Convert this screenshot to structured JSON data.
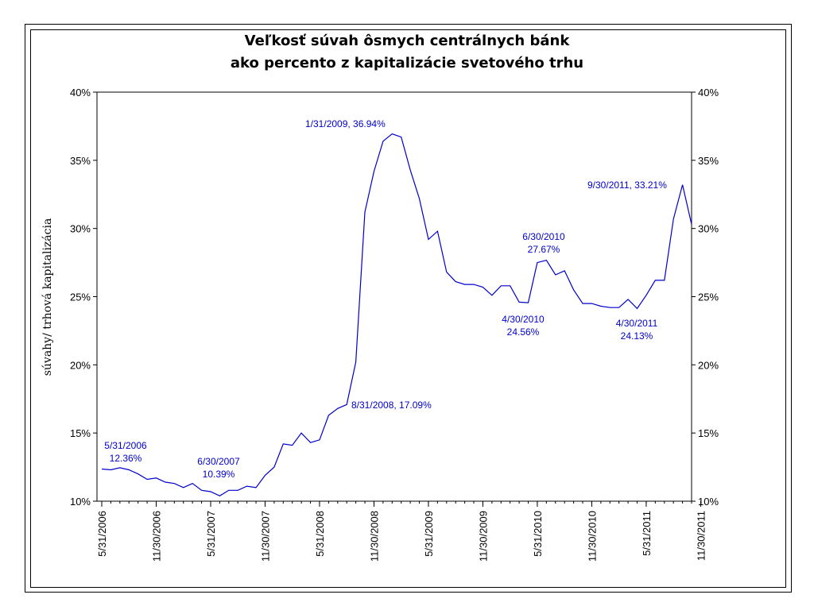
{
  "chart_data": {
    "type": "line",
    "title": [
      "Veľkosť súvah ôsmych centrálnych bánk",
      "ako percento z kapitalizácie svetového trhu"
    ],
    "ylabel": "súvahy/ trhová kapitalizácia",
    "ylim": [
      10,
      40
    ],
    "yticks": [
      "10%",
      "15%",
      "20%",
      "25%",
      "30%",
      "35%",
      "40%"
    ],
    "ytick_values": [
      10,
      15,
      20,
      25,
      30,
      35,
      40
    ],
    "xticks": [
      "5/31/2006",
      "11/30/2006",
      "5/31/2007",
      "11/30/2007",
      "5/31/2008",
      "11/30/2008",
      "5/31/2009",
      "11/30/2009",
      "5/31/2010",
      "11/30/2010",
      "5/31/2011",
      "11/30/2011"
    ],
    "grid": false,
    "secondary_y_axis": true,
    "color": "#0000cc",
    "series": [
      {
        "values": [
          12.36,
          12.3,
          12.45,
          12.3,
          12.0,
          11.6,
          11.7,
          11.4,
          11.3,
          11.0,
          11.3,
          10.8,
          10.7,
          10.39,
          10.8,
          10.8,
          11.1,
          11.0,
          11.9,
          12.5,
          14.2,
          14.1,
          15.0,
          14.3,
          14.5,
          16.3,
          16.8,
          17.09,
          20.2,
          31.2,
          34.2,
          36.4,
          36.94,
          36.7,
          34.3,
          32.2,
          29.2,
          29.8,
          26.8,
          26.1,
          25.9,
          25.9,
          25.7,
          25.1,
          25.8,
          25.8,
          24.6,
          24.56,
          27.5,
          27.67,
          26.6,
          26.9,
          25.5,
          24.5,
          24.5,
          24.3,
          24.2,
          24.2,
          24.8,
          24.13,
          25.1,
          26.2,
          26.2,
          30.7,
          33.21,
          30.3
        ]
      }
    ],
    "annotations": [
      {
        "lines": [
          "5/31/2006",
          "12.36%"
        ]
      },
      {
        "lines": [
          "6/30/2007",
          "10.39%"
        ]
      },
      {
        "lines": [
          "8/31/2008, 17.09%"
        ]
      },
      {
        "lines": [
          "1/31/2009, 36.94%"
        ]
      },
      {
        "lines": [
          "4/30/2010",
          "24.56%"
        ]
      },
      {
        "lines": [
          "6/30/2010",
          "27.67%"
        ]
      },
      {
        "lines": [
          "4/30/2011",
          "24.13%"
        ]
      },
      {
        "lines": [
          "9/30/2011, 33.21%"
        ]
      }
    ]
  }
}
